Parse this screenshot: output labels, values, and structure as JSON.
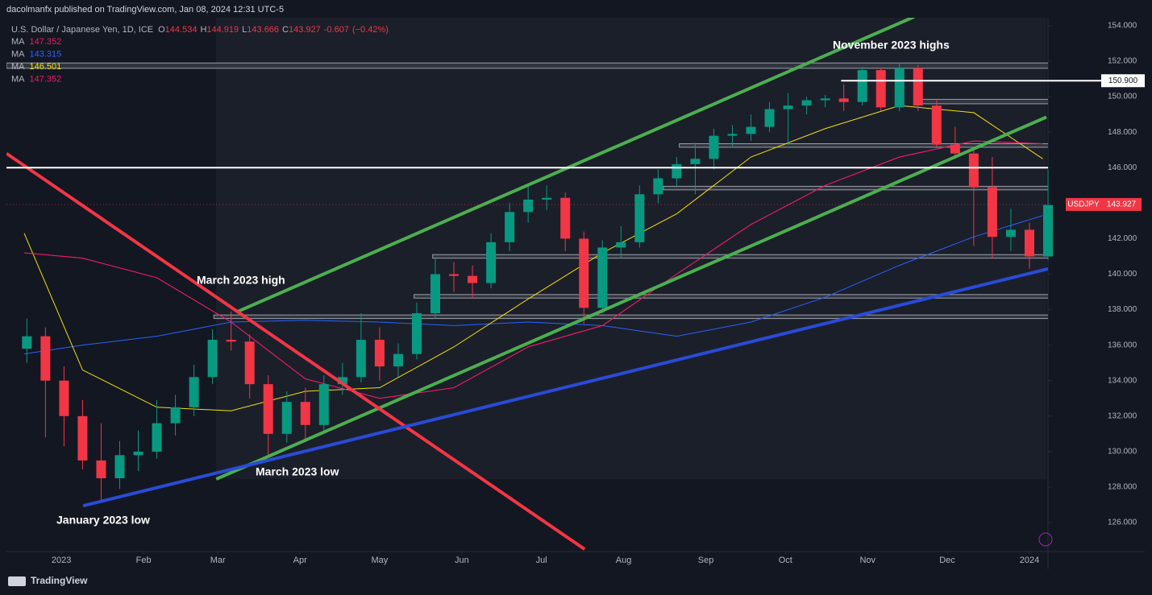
{
  "chart_data": {
    "type": "candlestick",
    "publisher": "dacolmanfx published on TradingView.com, Jan 08, 2024 12:31 UTC-5",
    "symbol": "U.S. Dollar / Japanese Yen, 1D, ICE",
    "ohlc": [
      {
        "key": "O",
        "value": 144.534
      },
      {
        "key": "H",
        "value": 144.919
      },
      {
        "key": "L",
        "value": 143.666
      },
      {
        "key": "C",
        "value": 143.927
      }
    ],
    "change": -0.607,
    "change_pct_label": "(−0.42%)",
    "symbol_label": "USDJPY",
    "last_price": 143.927,
    "up_color": "#089981",
    "down_color": "#f23645",
    "xlim": [
      -20.7,
      372
    ],
    "ylim": [
      124.37,
      154.45
    ],
    "xticks": [
      {
        "value": 0,
        "label": "2023"
      },
      {
        "value": 31,
        "label": "Feb"
      },
      {
        "value": 59,
        "label": "Mar"
      },
      {
        "value": 90,
        "label": "Apr"
      },
      {
        "value": 120,
        "label": "May"
      },
      {
        "value": 151,
        "label": "Jun"
      },
      {
        "value": 181,
        "label": "Jul"
      },
      {
        "value": 212,
        "label": "Aug"
      },
      {
        "value": 243,
        "label": "Sep"
      },
      {
        "value": 273,
        "label": "Oct"
      },
      {
        "value": 304,
        "label": "Nov"
      },
      {
        "value": 334,
        "label": "Dec"
      },
      {
        "value": 365,
        "label": "2024"
      }
    ],
    "yticks": [
      {
        "value": 126,
        "label": "126.000"
      },
      {
        "value": 128,
        "label": "128.000"
      },
      {
        "value": 130,
        "label": "130.000"
      },
      {
        "value": 132,
        "label": "132.000"
      },
      {
        "value": 134,
        "label": "134.000"
      },
      {
        "value": 136,
        "label": "136.000"
      },
      {
        "value": 138,
        "label": "138.000"
      },
      {
        "value": 140,
        "label": "140.000"
      },
      {
        "value": 142,
        "label": "142.000"
      },
      {
        "value": 144,
        "label": "144.000"
      },
      {
        "value": 146,
        "label": "146.000"
      },
      {
        "value": 148,
        "label": "148.000"
      },
      {
        "value": 150,
        "label": "150.000"
      },
      {
        "value": 152,
        "label": "152.000"
      },
      {
        "value": 154,
        "label": "154.000"
      }
    ],
    "x": [
      -13,
      -6,
      1,
      8,
      15,
      22,
      29,
      36,
      43,
      50,
      57,
      64,
      71,
      78,
      85,
      92,
      99,
      106,
      113,
      120,
      127,
      134,
      141,
      148,
      155,
      162,
      169,
      176,
      183,
      190,
      197,
      204,
      211,
      218,
      225,
      232,
      239,
      246,
      253,
      260,
      267,
      274,
      281,
      288,
      295,
      302,
      309,
      316,
      323,
      330,
      337,
      344,
      351,
      358,
      365,
      372
    ],
    "open": [
      135.8,
      136.5,
      134.0,
      132.0,
      129.5,
      128.5,
      129.8,
      130.0,
      131.6,
      132.5,
      134.2,
      136.3,
      136.2,
      133.8,
      131.0,
      132.8,
      131.5,
      133.8,
      134.2,
      136.3,
      134.8,
      135.5,
      137.8,
      140.0,
      139.9,
      139.5,
      141.8,
      143.5,
      144.2,
      144.3,
      142.0,
      138.1,
      141.5,
      141.8,
      144.5,
      145.4,
      146.2,
      146.5,
      147.8,
      147.9,
      148.3,
      149.3,
      149.5,
      149.8,
      149.9,
      149.7,
      151.5,
      149.4,
      151.6,
      149.5,
      147.3,
      146.8,
      144.9,
      142.1,
      142.5,
      141.0
    ],
    "high": [
      137.5,
      137.0,
      134.8,
      132.9,
      131.6,
      130.6,
      131.2,
      132.9,
      133.2,
      134.9,
      136.9,
      137.9,
      136.6,
      134.3,
      133.4,
      133.6,
      134.3,
      135.0,
      137.8,
      137.0,
      136.1,
      138.4,
      140.9,
      140.7,
      140.5,
      142.3,
      144.0,
      145.1,
      145.0,
      144.6,
      142.4,
      141.9,
      142.7,
      145.0,
      145.9,
      146.6,
      147.4,
      148.2,
      148.4,
      149.0,
      149.7,
      150.2,
      150.0,
      150.1,
      150.7,
      151.7,
      151.6,
      151.9,
      151.8,
      149.8,
      148.3,
      147.2,
      146.6,
      143.7,
      142.9,
      145.9
    ],
    "low": [
      135.0,
      130.8,
      130.3,
      129.0,
      127.2,
      127.9,
      128.9,
      129.6,
      130.9,
      132.0,
      133.8,
      135.7,
      133.0,
      129.7,
      130.5,
      130.7,
      131.1,
      133.2,
      133.9,
      134.0,
      134.2,
      135.2,
      137.5,
      139.0,
      138.7,
      139.2,
      141.3,
      142.9,
      143.6,
      141.3,
      137.2,
      137.8,
      140.9,
      141.5,
      144.0,
      144.9,
      144.5,
      145.9,
      147.2,
      147.5,
      148.0,
      147.3,
      149.0,
      149.4,
      149.2,
      149.5,
      149.2,
      149.2,
      149.2,
      147.2,
      146.6,
      141.6,
      140.9,
      141.3,
      140.3,
      140.8
    ],
    "close": [
      136.5,
      134.0,
      132.0,
      129.5,
      128.5,
      129.8,
      130.0,
      131.6,
      132.5,
      134.2,
      136.3,
      136.2,
      133.8,
      131.0,
      132.8,
      131.5,
      133.8,
      134.2,
      136.3,
      134.8,
      135.5,
      137.8,
      140.0,
      139.9,
      139.5,
      141.8,
      143.5,
      144.2,
      144.3,
      142.0,
      138.1,
      141.5,
      141.8,
      144.5,
      145.4,
      146.2,
      146.5,
      147.8,
      147.9,
      148.3,
      149.3,
      149.5,
      149.8,
      149.9,
      149.7,
      151.5,
      149.4,
      151.6,
      149.5,
      147.3,
      146.8,
      144.9,
      142.1,
      142.5,
      141.0,
      143.9
    ],
    "ma_x": [
      -14,
      8,
      36,
      64,
      92,
      120,
      148,
      176,
      204,
      232,
      260,
      288,
      316,
      344,
      370
    ],
    "ma": [
      {
        "name": "MA",
        "color": "#e91e63",
        "legend_value": 147.352,
        "values": [
          141.2,
          140.9,
          139.8,
          137.3,
          134.1,
          133.0,
          133.6,
          135.9,
          137.1,
          140.0,
          142.8,
          145.0,
          146.6,
          147.5,
          147.35
        ]
      },
      {
        "name": "MA",
        "color": "#2962ff",
        "legend_value": 143.315,
        "values": [
          135.5,
          136.0,
          136.5,
          137.3,
          137.4,
          137.3,
          137.1,
          137.3,
          137.1,
          136.5,
          137.3,
          138.7,
          140.5,
          142.1,
          143.3
        ]
      },
      {
        "name": "MA",
        "color": "#f5e100",
        "legend_value": 146.501,
        "values": [
          142.3,
          134.6,
          132.5,
          132.3,
          133.4,
          133.6,
          135.9,
          138.6,
          141.2,
          143.4,
          146.6,
          148.2,
          149.5,
          149.1,
          146.5
        ]
      },
      {
        "name": "MA",
        "color": "#e91e63",
        "legend_value": 147.352,
        "values": [
          141.2,
          140.9,
          139.8,
          137.3,
          134.1,
          133.0,
          133.6,
          135.9,
          137.1,
          140.0,
          142.8,
          145.0,
          146.6,
          147.5,
          147.35
        ]
      }
    ],
    "trendlines": [
      {
        "color": "#4caf50",
        "x": [
          66.6,
          321.5
        ],
        "y": [
          137.9,
          154.5
        ]
      },
      {
        "color": "#4caf50",
        "x": [
          58.4,
          371.4
        ],
        "y": [
          128.45,
          148.85
        ]
      },
      {
        "color": "#f23645",
        "x": [
          -20.7,
          197.3
        ],
        "y": [
          146.8,
          124.5
        ]
      },
      {
        "color": "#2a4bd7",
        "x": [
          8.2,
          372
        ],
        "y": [
          126.95,
          140.3
        ]
      }
    ],
    "zones": [
      {
        "x": -20.7,
        "y": [
          151.6,
          151.9
        ]
      },
      {
        "x": 322,
        "y": [
          149.6,
          149.85
        ]
      },
      {
        "x": 233,
        "y": [
          147.15,
          147.35
        ]
      },
      {
        "x": 227,
        "y": [
          144.75,
          144.95
        ]
      },
      {
        "x": 140,
        "y": [
          140.9,
          141.1
        ]
      },
      {
        "x": 133,
        "y": [
          138.65,
          138.85
        ]
      },
      {
        "x": 57.5,
        "y": [
          137.5,
          137.7
        ]
      }
    ],
    "hlines": [
      {
        "x": -20.7,
        "value": 146.0
      },
      {
        "x": 294,
        "value": {
          "value": 150.9,
          "label": "150.900"
        }
      }
    ],
    "annotations": [
      "March 2023 high",
      "March 2023 low",
      "January 2023 low",
      "November 2023 highs"
    ],
    "brand": "TradingView"
  }
}
